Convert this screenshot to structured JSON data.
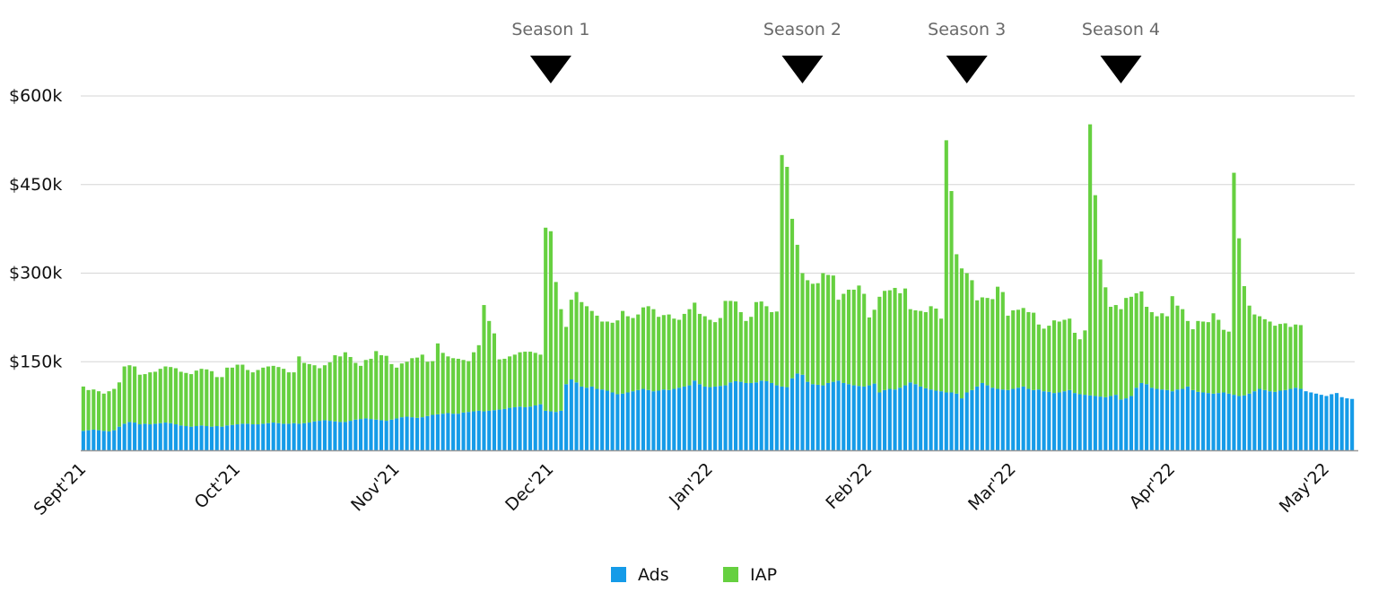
{
  "chart_data": {
    "type": "bar",
    "stacked": true,
    "title": "",
    "xlabel": "",
    "ylabel": "",
    "ylim": [
      0,
      600000
    ],
    "y_ticks": [
      {
        "value": 150000,
        "label": "$150k"
      },
      {
        "value": 300000,
        "label": "$300k"
      },
      {
        "value": 450000,
        "label": "$450k"
      },
      {
        "value": 600000,
        "label": "$600k"
      }
    ],
    "x_ticks": [
      {
        "index": 0,
        "label": "Sept'21"
      },
      {
        "index": 30,
        "label": "Oct'21"
      },
      {
        "index": 61,
        "label": "Nov'21"
      },
      {
        "index": 91,
        "label": "Dec'21"
      },
      {
        "index": 122,
        "label": "Jan'22"
      },
      {
        "index": 153,
        "label": "Feb'22"
      },
      {
        "index": 181,
        "label": "Mar'22"
      },
      {
        "index": 212,
        "label": "Apr'22"
      },
      {
        "index": 242,
        "label": "May'22"
      }
    ],
    "grid": true,
    "legend_position": "bottom-center",
    "markers": [
      {
        "index": 91,
        "label": "Season 1"
      },
      {
        "index": 140,
        "label": "Season 2"
      },
      {
        "index": 172,
        "label": "Season 3"
      },
      {
        "index": 202,
        "label": "Season 4"
      }
    ],
    "series": [
      {
        "name": "Ads",
        "color": "#159BE8",
        "values": [
          33000,
          34000,
          35000,
          34000,
          33000,
          32000,
          34000,
          40000,
          45000,
          48000,
          47000,
          44000,
          45000,
          44000,
          45000,
          46000,
          47000,
          46000,
          44000,
          42000,
          41000,
          40000,
          41000,
          42000,
          41000,
          40000,
          41000,
          40000,
          42000,
          43000,
          44000,
          45000,
          45000,
          44000,
          44000,
          45000,
          46000,
          47000,
          46000,
          45000,
          45000,
          46000,
          45000,
          46000,
          47000,
          49000,
          50000,
          51000,
          50000,
          49000,
          48000,
          48000,
          50000,
          52000,
          53000,
          54000,
          53000,
          52000,
          51000,
          50000,
          52000,
          54000,
          56000,
          57000,
          56000,
          55000,
          56000,
          58000,
          60000,
          61000,
          62000,
          63000,
          62000,
          62000,
          64000,
          65000,
          66000,
          67000,
          66000,
          67000,
          68000,
          69000,
          70000,
          72000,
          73000,
          74000,
          73000,
          74000,
          76000,
          78000,
          67000,
          66000,
          65000,
          67000,
          112000,
          120000,
          115000,
          108000,
          106000,
          108000,
          104000,
          103000,
          101000,
          98000,
          95000,
          96000,
          98000,
          100000,
          102000,
          104000,
          102000,
          100000,
          101000,
          103000,
          102000,
          104000,
          106000,
          108000,
          110000,
          118000,
          112000,
          108000,
          107000,
          108000,
          109000,
          110000,
          115000,
          117000,
          116000,
          114000,
          114000,
          115000,
          118000,
          117000,
          114000,
          110000,
          108000,
          107000,
          122000,
          130000,
          128000,
          116000,
          112000,
          111000,
          110000,
          114000,
          116000,
          118000,
          114000,
          112000,
          110000,
          109000,
          108000,
          110000,
          113000,
          98000,
          102000,
          104000,
          103000,
          106000,
          110000,
          115000,
          112000,
          108000,
          105000,
          103000,
          101000,
          100000,
          98000,
          98000,
          96000,
          88000,
          98000,
          102000,
          108000,
          114000,
          110000,
          106000,
          104000,
          103000,
          102000,
          104000,
          106000,
          108000,
          104000,
          102000,
          103000,
          100000,
          99000,
          97000,
          98000,
          100000,
          102000,
          97000,
          95000,
          94000,
          93000,
          92000,
          91000,
          90000,
          92000,
          94000,
          86000,
          88000,
          92000,
          106000,
          114000,
          112000,
          106000,
          104000,
          103000,
          102000,
          100000,
          103000,
          104000,
          108000,
          102000,
          99000,
          98000,
          97000,
          96000,
          97000,
          98000,
          96000,
          94000,
          92000,
          93000,
          96000,
          100000,
          104000,
          102000,
          100000,
          99000,
          101000,
          102000,
          104000,
          106000,
          104000,
          100000,
          98000,
          96000,
          94000,
          92000,
          95000,
          97000,
          90000,
          88000,
          87000
        ]
      },
      {
        "name": "IAP",
        "color": "#66D040",
        "values": [
          75000,
          68000,
          68000,
          66000,
          63000,
          68000,
          70000,
          75000,
          97000,
          96000,
          95000,
          84000,
          84000,
          88000,
          88000,
          92000,
          95000,
          95000,
          95000,
          91000,
          90000,
          89000,
          94000,
          96000,
          96000,
          94000,
          83000,
          84000,
          98000,
          97000,
          101000,
          100000,
          91000,
          88000,
          92000,
          95000,
          96000,
          96000,
          95000,
          93000,
          87000,
          86000,
          114000,
          102000,
          99000,
          95000,
          89000,
          93000,
          99000,
          112000,
          111000,
          118000,
          108000,
          96000,
          90000,
          99000,
          102000,
          116000,
          110000,
          110000,
          94000,
          86000,
          91000,
          93000,
          100000,
          102000,
          106000,
          92000,
          91000,
          120000,
          103000,
          96000,
          94000,
          93000,
          89000,
          86000,
          100000,
          111000,
          180000,
          152000,
          130000,
          85000,
          85000,
          87000,
          89000,
          92000,
          94000,
          93000,
          89000,
          84000,
          310000,
          305000,
          220000,
          172000,
          97000,
          135000,
          153000,
          143000,
          138000,
          128000,
          124000,
          115000,
          117000,
          118000,
          125000,
          140000,
          129000,
          124000,
          128000,
          138000,
          142000,
          139000,
          125000,
          126000,
          128000,
          119000,
          115000,
          123000,
          129000,
          132000,
          119000,
          119000,
          114000,
          109000,
          115000,
          143000,
          138000,
          135000,
          118000,
          105000,
          112000,
          136000,
          134000,
          127000,
          120000,
          125000,
          392000,
          373000,
          270000,
          218000,
          172000,
          172000,
          170000,
          172000,
          190000,
          183000,
          180000,
          137000,
          151000,
          160000,
          162000,
          170000,
          157000,
          115000,
          125000,
          162000,
          168000,
          167000,
          172000,
          160000,
          164000,
          124000,
          125000,
          128000,
          129000,
          141000,
          139000,
          123000,
          427000,
          341000,
          236000,
          220000,
          202000,
          186000,
          146000,
          145000,
          148000,
          150000,
          173000,
          165000,
          126000,
          133000,
          132000,
          133000,
          130000,
          131000,
          110000,
          106000,
          112000,
          123000,
          120000,
          121000,
          121000,
          102000,
          93000,
          109000,
          459000,
          340000,
          232000,
          186000,
          151000,
          152000,
          153000,
          170000,
          168000,
          160000,
          155000,
          131000,
          128000,
          123000,
          129000,
          125000,
          161000,
          142000,
          135000,
          111000,
          103000,
          120000,
          120000,
          120000,
          136000,
          124000,
          106000,
          105000,
          376000,
          267000,
          185000,
          149000,
          130000,
          123000,
          120000,
          118000,
          112000,
          113000,
          113000,
          105000,
          107000,
          108000
        ]
      }
    ]
  }
}
